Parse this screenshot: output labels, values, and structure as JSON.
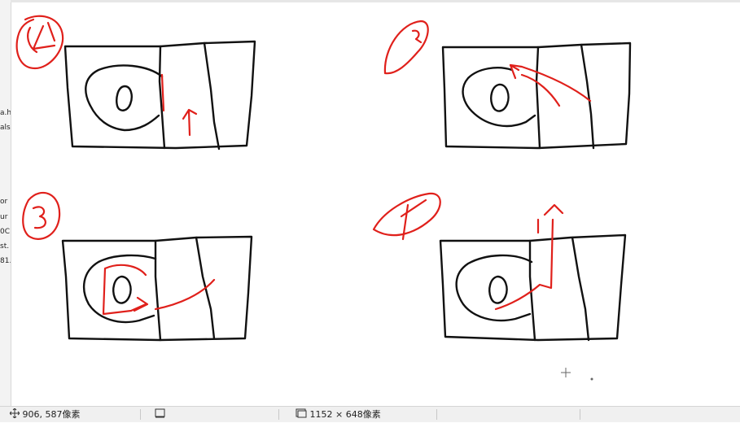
{
  "left_strip": {
    "texts": [
      "a.h",
      "als",
      "or",
      "ur",
      "0C",
      "st.",
      "81."
    ]
  },
  "status_bar": {
    "cursor_icon": "move-cursor-icon",
    "cursor_position": "906, 587像素",
    "selection_icon": "selection-rect-icon",
    "canvas_icon": "canvas-size-icon",
    "canvas_size": "1152 × 648像素"
  },
  "colors": {
    "sketch": "#111111",
    "annotation": "#e0201b",
    "status_bg": "#f0f0f0"
  }
}
